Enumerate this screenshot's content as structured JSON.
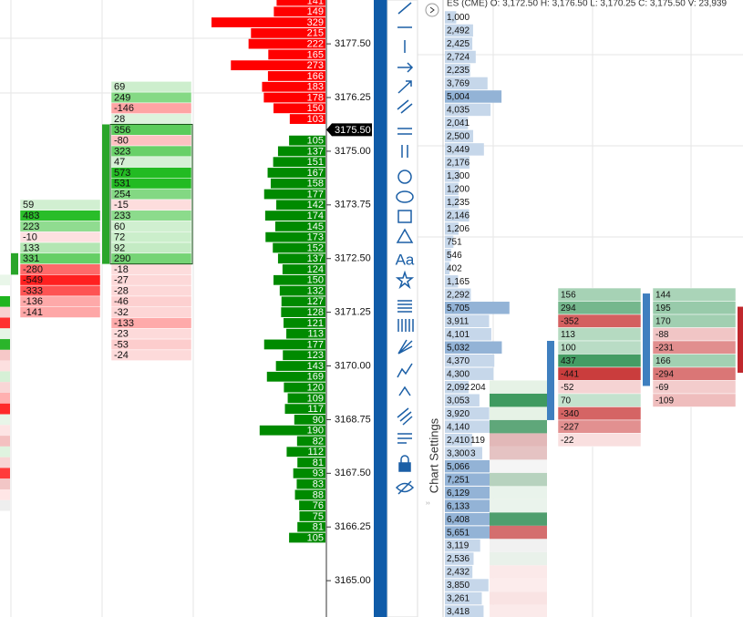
{
  "toolbar": {
    "text_tool": "Aa"
  },
  "price_axis": {
    "labels": [
      "3177.50",
      "3176.25",
      "3175.00",
      "3173.75",
      "3172.50",
      "3171.25",
      "3170.00",
      "3168.75",
      "3167.50",
      "3166.25",
      "3165.00"
    ],
    "current_price": "3175.50"
  },
  "asks": [
    141,
    149,
    329,
    215,
    222,
    165,
    273,
    166,
    183,
    178,
    150,
    103
  ],
  "bids": [
    105,
    137,
    151,
    167,
    158,
    177,
    142,
    174,
    145,
    173,
    152,
    137,
    124,
    150,
    132,
    127,
    128,
    121,
    113,
    177,
    123,
    143,
    169,
    120,
    109,
    117,
    90,
    190,
    82,
    112,
    81,
    93,
    83,
    88,
    76,
    75,
    81,
    105
  ],
  "footprint_left": [
    59,
    483,
    223,
    -10,
    133,
    331,
    -280,
    -549,
    -333,
    -136,
    -141
  ],
  "footprint_mid": [
    69,
    249,
    -146,
    28,
    356,
    -80,
    323,
    47,
    573,
    531,
    254,
    -15,
    233,
    60,
    72,
    92,
    290,
    -18,
    -27,
    -28,
    -46,
    -32,
    -133,
    -23,
    -53,
    -24
  ],
  "chart": {
    "header": "ES (CME)  O: 3,172.50  H: 3,176.50  L: 3,170.25  C: 3,175.50  V: 23,939",
    "settings_label": "Chart Settings",
    "volume_profile": [
      {
        "value": 1000,
        "label": "1,000"
      },
      {
        "value": 2492,
        "label": "2,492"
      },
      {
        "value": 2425,
        "label": "2,425"
      },
      {
        "value": 2724,
        "label": "2,724"
      },
      {
        "value": 2235,
        "label": "2,235"
      },
      {
        "value": 3769,
        "label": "3,769"
      },
      {
        "value": 5004,
        "label": "5,004"
      },
      {
        "value": 4035,
        "label": "4,035"
      },
      {
        "value": 2041,
        "label": "2,041"
      },
      {
        "value": 2500,
        "label": "2,500"
      },
      {
        "value": 3449,
        "label": "3,449"
      },
      {
        "value": 2176,
        "label": "2,176"
      },
      {
        "value": 1300,
        "label": "1,300"
      },
      {
        "value": 1200,
        "label": "1,200"
      },
      {
        "value": 1235,
        "label": "1,235"
      },
      {
        "value": 2146,
        "label": "2,146"
      },
      {
        "value": 1206,
        "label": "1,206"
      },
      751,
      546,
      402,
      {
        "value": 1165,
        "label": "1,165"
      },
      {
        "value": 2292,
        "label": "2,292"
      },
      {
        "value": 5705,
        "label": "5,705"
      },
      {
        "value": 3911,
        "label": "3,911"
      },
      {
        "value": 4101,
        "label": "4,101"
      },
      {
        "value": 5032,
        "label": "5,032"
      },
      {
        "value": 4370,
        "label": "4,370"
      },
      {
        "value": 4300,
        "label": "4,300"
      },
      {
        "value": 2092,
        "label": "2,092"
      },
      {
        "value": 3053,
        "label": "3,053"
      },
      {
        "value": 3920,
        "label": "3,920"
      },
      {
        "value": 4140,
        "label": "4,140"
      },
      {
        "value": 2410,
        "label": "2,410"
      },
      {
        "value": 3300,
        "label": "3,300"
      },
      {
        "value": 5066,
        "label": "5,066"
      },
      {
        "value": 7251,
        "label": "7,251"
      },
      {
        "value": 6129,
        "label": "6,129"
      },
      {
        "value": 6133,
        "label": "6,133"
      },
      {
        "value": 6408,
        "label": "6,408"
      },
      {
        "value": 5651,
        "label": "5,651"
      },
      {
        "value": 3119,
        "label": "3,119"
      },
      {
        "value": 2536,
        "label": "2,536"
      },
      {
        "value": 2432,
        "label": "2,432"
      },
      {
        "value": 3850,
        "label": "3,850"
      },
      {
        "value": 3261,
        "label": "3,261"
      },
      {
        "value": 3418,
        "label": "3,418"
      }
    ],
    "footprint_a": [
      204,
      null,
      null,
      null,
      119,
      3
    ],
    "footprint_b": [
      156,
      294,
      -352,
      113,
      100,
      437,
      -441,
      -52,
      70,
      -340,
      -227,
      -22
    ],
    "footprint_c": [
      144,
      195,
      170,
      -88,
      -231,
      166,
      -294,
      -69,
      -109
    ]
  }
}
